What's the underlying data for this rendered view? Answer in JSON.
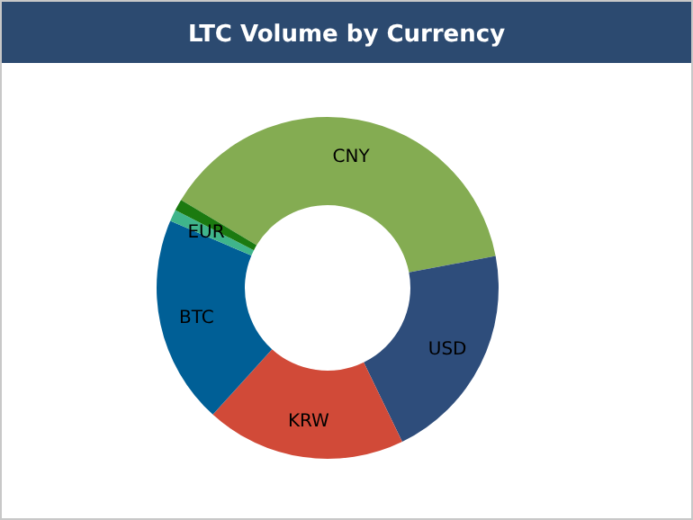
{
  "chart_data": {
    "type": "donut",
    "title": "LTC Volume by Currency",
    "categories": [
      "CNY",
      "USD",
      "KRW",
      "BTC",
      "EUR",
      null
    ],
    "values": [
      38.4,
      20.8,
      18.9,
      19.7,
      1.1,
      1.1
    ],
    "colors": [
      "#84ac52",
      "#2e4d7b",
      "#d14a38",
      "#005f96",
      "#3fb58b",
      "#1b7a10"
    ],
    "legend": false
  }
}
